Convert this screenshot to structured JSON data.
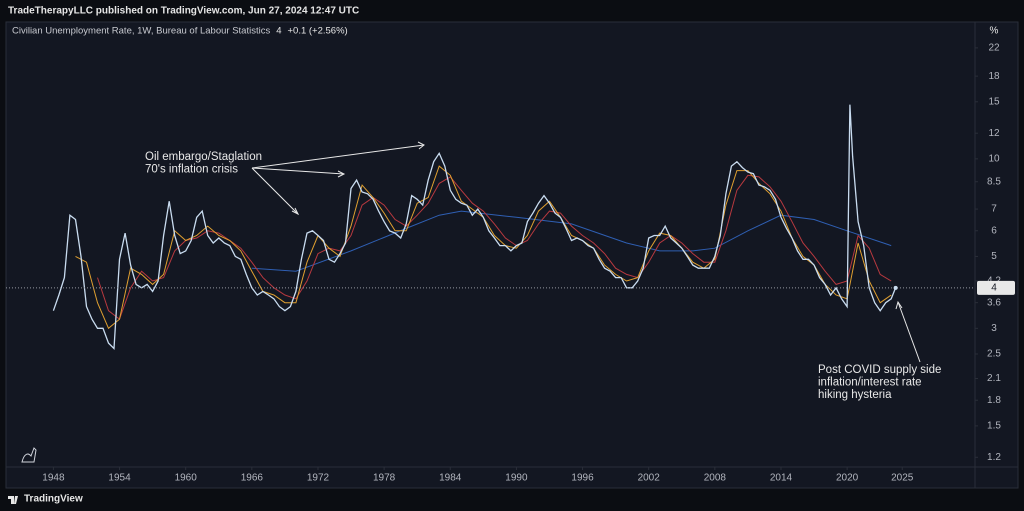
{
  "header": "TradeTherapyLLC published on TradingView.com, Jun 27, 2024 12:47 UTC",
  "brand": "TradingView",
  "chart_data": {
    "type": "line",
    "title": "Civilian Unemployment Rate, 1W, Bureau of Labour Statistics",
    "last_value": 4,
    "change": "+0.1 (+2.56%)",
    "y_unit": "%",
    "log_scale": true,
    "xlim": [
      1943.7,
      2031.6
    ],
    "xticks": [
      1948,
      1954,
      1960,
      1966,
      1972,
      1978,
      1984,
      1990,
      1996,
      2002,
      2008,
      2014,
      2020,
      2025
    ],
    "ylim": [
      1.12,
      23.6
    ],
    "yticks": [
      1.2,
      1.5,
      1.8,
      2.1,
      2.5,
      3,
      3.6,
      4.2,
      5,
      6,
      7,
      8.5,
      10,
      12,
      15,
      18,
      22
    ],
    "series": [
      {
        "color": "#c9dcf0",
        "x": [
          1948,
          1948.5,
          1949,
          1949.5,
          1950,
          1950.5,
          1951,
          1951.5,
          1952,
          1952.5,
          1953,
          1953.5,
          1954,
          1954.5,
          1955,
          1955.5,
          1956,
          1956.5,
          1957,
          1957.5,
          1958,
          1958.5,
          1959,
          1959.5,
          1960,
          1960.5,
          1961,
          1961.5,
          1962,
          1962.5,
          1963,
          1963.5,
          1964,
          1964.5,
          1965,
          1965.5,
          1966,
          1966.5,
          1967,
          1967.5,
          1968,
          1968.5,
          1969,
          1969.5,
          1970,
          1970.5,
          1971,
          1971.5,
          1972,
          1972.5,
          1973,
          1973.5,
          1974,
          1974.5,
          1975,
          1975.5,
          1976,
          1976.5,
          1977,
          1977.5,
          1978,
          1978.5,
          1979,
          1979.5,
          1980,
          1980.5,
          1981,
          1981.5,
          1982,
          1982.5,
          1983,
          1983.5,
          1984,
          1984.5,
          1985,
          1985.5,
          1986,
          1986.5,
          1987,
          1987.5,
          1988,
          1988.5,
          1989,
          1989.5,
          1990,
          1990.5,
          1991,
          1991.5,
          1992,
          1992.5,
          1993,
          1993.5,
          1994,
          1994.5,
          1995,
          1995.5,
          1996,
          1996.5,
          1997,
          1997.5,
          1998,
          1998.5,
          1999,
          1999.5,
          2000,
          2000.5,
          2001,
          2001.5,
          2002,
          2002.5,
          2003,
          2003.5,
          2004,
          2004.5,
          2005,
          2005.5,
          2006,
          2006.5,
          2007,
          2007.5,
          2008,
          2008.5,
          2009,
          2009.5,
          2010,
          2010.5,
          2011,
          2011.5,
          2012,
          2012.5,
          2013,
          2013.5,
          2014,
          2014.5,
          2015,
          2015.5,
          2016,
          2016.5,
          2017,
          2017.5,
          2018,
          2018.5,
          2019,
          2019.5,
          2020,
          2020.25,
          2020.5,
          2021,
          2021.5,
          2022,
          2022.5,
          2023,
          2023.5,
          2024,
          2024.4
        ],
        "values": [
          3.4,
          3.8,
          4.3,
          6.7,
          6.5,
          5.0,
          3.5,
          3.2,
          3.0,
          3.0,
          2.7,
          2.6,
          4.9,
          5.9,
          4.7,
          4.1,
          4.0,
          4.1,
          3.9,
          4.2,
          5.8,
          7.4,
          5.8,
          5.1,
          5.2,
          5.6,
          6.6,
          6.9,
          5.8,
          5.5,
          5.7,
          5.5,
          5.4,
          5.0,
          4.9,
          4.4,
          4.0,
          3.8,
          3.9,
          3.8,
          3.7,
          3.5,
          3.4,
          3.5,
          3.9,
          4.9,
          5.9,
          6.0,
          5.8,
          5.6,
          4.9,
          4.8,
          5.1,
          5.5,
          8.1,
          8.6,
          7.9,
          7.8,
          7.5,
          6.9,
          6.4,
          6.0,
          5.9,
          5.7,
          6.3,
          7.7,
          7.5,
          7.2,
          8.6,
          9.8,
          10.4,
          9.5,
          8.0,
          7.5,
          7.3,
          7.2,
          6.7,
          7.0,
          6.6,
          6.0,
          5.7,
          5.4,
          5.4,
          5.2,
          5.4,
          5.5,
          6.4,
          6.8,
          7.3,
          7.7,
          7.3,
          6.8,
          6.6,
          6.1,
          5.6,
          5.7,
          5.6,
          5.4,
          5.3,
          4.9,
          4.6,
          4.5,
          4.3,
          4.3,
          4.0,
          4.0,
          4.2,
          4.6,
          5.7,
          5.8,
          5.8,
          6.2,
          5.7,
          5.5,
          5.3,
          5.0,
          4.7,
          4.6,
          4.6,
          4.6,
          5.0,
          5.8,
          7.8,
          9.5,
          9.8,
          9.4,
          9.1,
          9.0,
          8.3,
          8.2,
          8.0,
          7.5,
          6.6,
          6.1,
          5.7,
          5.2,
          4.9,
          4.9,
          4.7,
          4.3,
          4.1,
          3.8,
          4.0,
          3.7,
          3.5,
          14.7,
          10.2,
          6.4,
          5.4,
          4.0,
          3.6,
          3.4,
          3.6,
          3.7,
          4.0
        ]
      },
      {
        "color": "#e0a030",
        "x": [
          1950,
          1951,
          1952,
          1953,
          1954,
          1955,
          1956,
          1957,
          1958,
          1959,
          1960,
          1961,
          1962,
          1963,
          1964,
          1965,
          1966,
          1967,
          1968,
          1969,
          1970,
          1971,
          1972,
          1973,
          1974,
          1975,
          1976,
          1977,
          1978,
          1979,
          1980,
          1981,
          1982,
          1983,
          1984,
          1985,
          1986,
          1987,
          1988,
          1989,
          1990,
          1991,
          1992,
          1993,
          1994,
          1995,
          1996,
          1997,
          1998,
          1999,
          2000,
          2001,
          2002,
          2003,
          2004,
          2005,
          2006,
          2007,
          2008,
          2009,
          2010,
          2011,
          2012,
          2013,
          2014,
          2015,
          2016,
          2017,
          2018,
          2019,
          2020,
          2021,
          2022,
          2023,
          2024
        ],
        "values": [
          5.0,
          4.8,
          3.6,
          3.0,
          3.2,
          4.6,
          4.4,
          4.1,
          4.4,
          6.0,
          5.6,
          5.8,
          6.2,
          5.8,
          5.6,
          5.2,
          4.5,
          3.9,
          3.8,
          3.6,
          3.6,
          4.8,
          5.8,
          5.3,
          5.0,
          6.2,
          8.3,
          7.6,
          6.8,
          6.0,
          6.0,
          7.3,
          7.6,
          9.5,
          8.9,
          7.4,
          7.0,
          6.6,
          5.8,
          5.4,
          5.3,
          5.8,
          6.9,
          7.4,
          6.6,
          5.8,
          5.6,
          5.3,
          4.7,
          4.4,
          4.2,
          4.3,
          5.2,
          5.9,
          5.8,
          5.3,
          4.8,
          4.6,
          4.9,
          7.2,
          9.2,
          9.2,
          8.4,
          7.8,
          6.9,
          5.7,
          5.0,
          4.7,
          4.1,
          3.8,
          3.7,
          5.5,
          4.2,
          3.6,
          3.8
        ]
      },
      {
        "color": "#b8393f",
        "x": [
          1952,
          1953,
          1954,
          1955,
          1956,
          1957,
          1958,
          1959,
          1960,
          1961,
          1962,
          1963,
          1964,
          1965,
          1966,
          1967,
          1968,
          1969,
          1970,
          1971,
          1972,
          1973,
          1974,
          1975,
          1976,
          1977,
          1978,
          1979,
          1980,
          1981,
          1982,
          1983,
          1984,
          1985,
          1986,
          1987,
          1988,
          1989,
          1990,
          1991,
          1992,
          1993,
          1994,
          1995,
          1996,
          1997,
          1998,
          1999,
          2000,
          2001,
          2002,
          2003,
          2004,
          2005,
          2006,
          2007,
          2008,
          2009,
          2010,
          2011,
          2012,
          2013,
          2014,
          2015,
          2016,
          2017,
          2018,
          2019,
          2020,
          2021,
          2022,
          2023,
          2024
        ],
        "values": [
          4.3,
          3.4,
          3.2,
          4.0,
          4.5,
          4.2,
          4.3,
          5.2,
          5.6,
          5.7,
          6.0,
          5.9,
          5.6,
          5.3,
          4.8,
          4.3,
          4.0,
          3.8,
          3.7,
          4.2,
          5.1,
          5.3,
          5.2,
          5.8,
          7.2,
          7.6,
          7.2,
          6.5,
          6.2,
          6.7,
          7.3,
          8.4,
          8.8,
          8.0,
          7.3,
          6.9,
          6.3,
          5.7,
          5.4,
          5.6,
          6.3,
          6.9,
          6.8,
          6.2,
          5.8,
          5.5,
          5.1,
          4.6,
          4.4,
          4.3,
          4.8,
          5.5,
          5.8,
          5.5,
          5.1,
          4.8,
          4.8,
          6.0,
          8.0,
          8.9,
          8.8,
          8.2,
          7.4,
          6.4,
          5.5,
          5.0,
          4.5,
          4.1,
          4.2,
          5.8,
          5.3,
          4.4,
          4.2
        ]
      },
      {
        "color": "#2f5fb3",
        "x": [
          1966,
          1970,
          1975,
          1980,
          1983,
          1985,
          1990,
          1995,
          2000,
          2003,
          2006,
          2008,
          2011,
          2014,
          2017,
          2020,
          2024
        ],
        "values": [
          4.6,
          4.5,
          5.2,
          6.1,
          6.7,
          6.9,
          6.6,
          6.3,
          5.5,
          5.2,
          5.2,
          5.3,
          6.0,
          6.7,
          6.5,
          6.0,
          5.4
        ]
      }
    ],
    "annotations": [
      {
        "lines": [
          "Oil embargo/Staglation",
          "70's inflation crisis"
        ]
      },
      {
        "lines": [
          "Post COVID supply side",
          "inflation/interest rate",
          "hiking hysteria"
        ]
      }
    ]
  }
}
